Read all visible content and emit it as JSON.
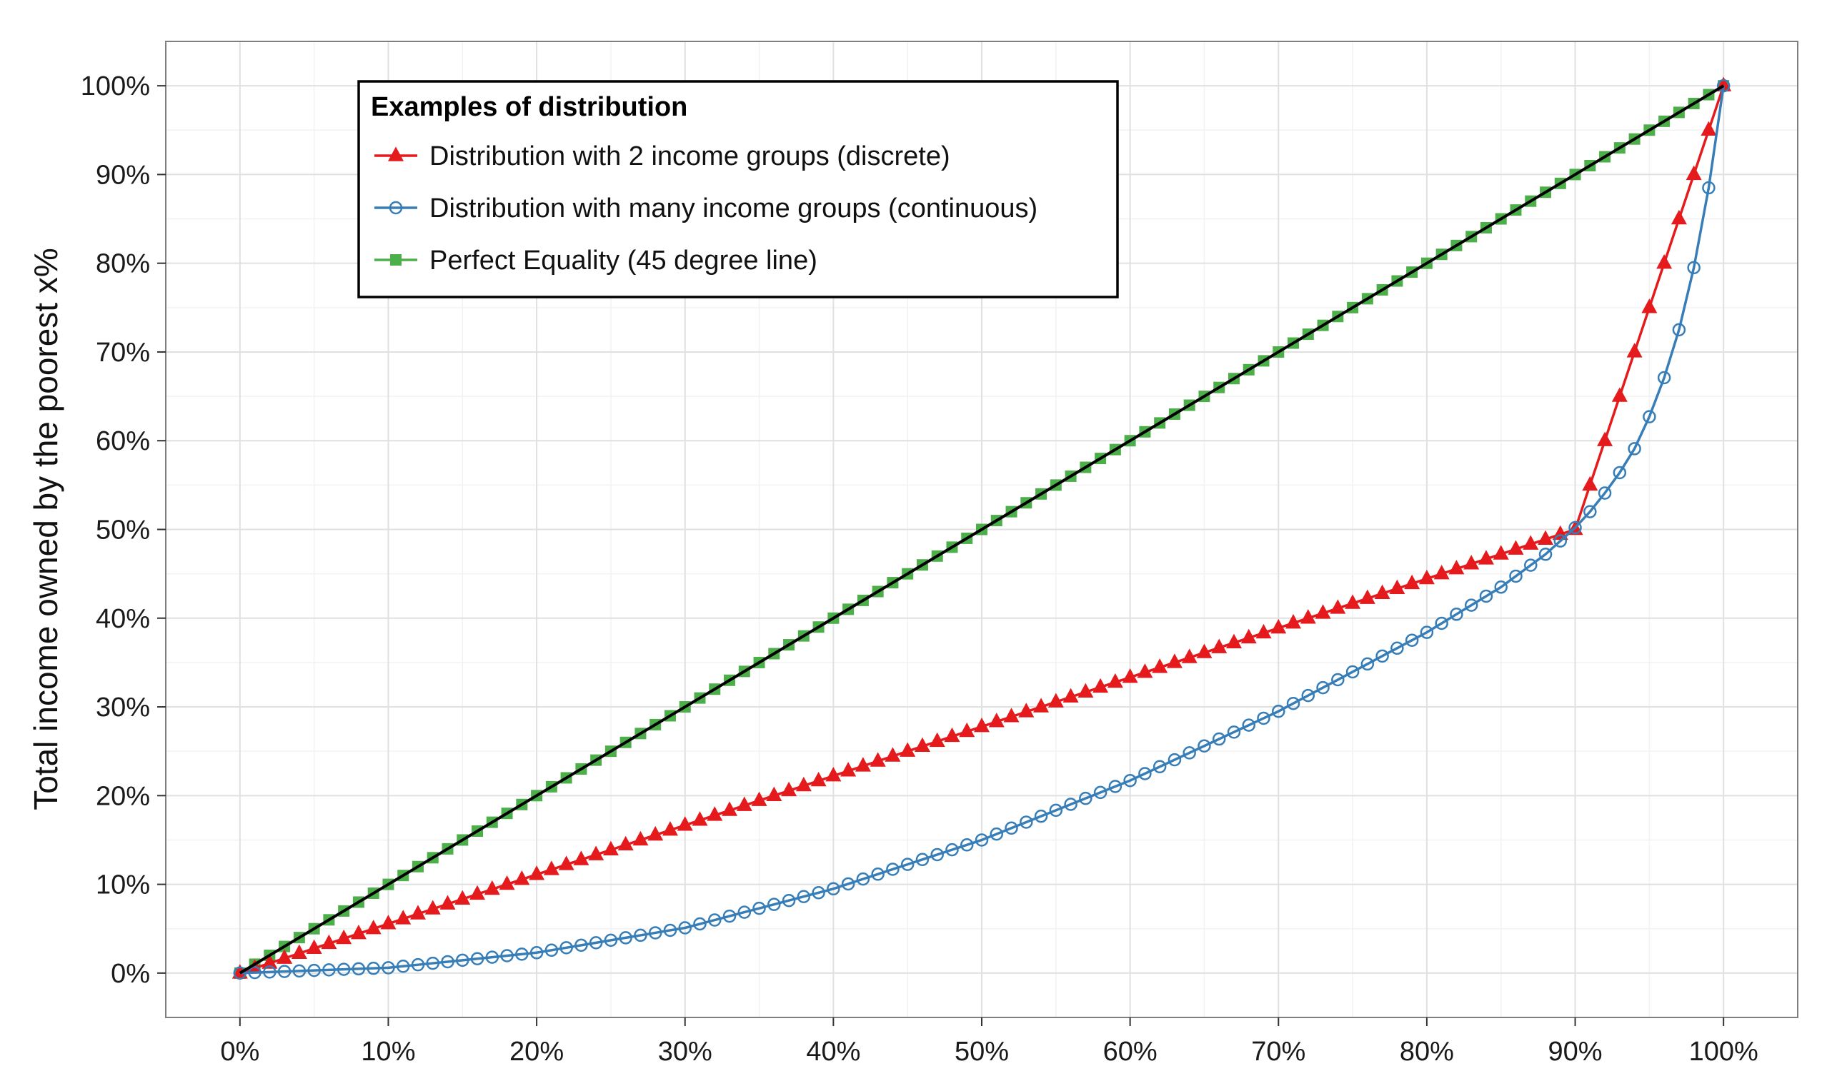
{
  "chart_data": {
    "type": "line",
    "title": "",
    "xlabel": "",
    "ylabel": "Total income owned by the poorest x%",
    "xlim": [
      -5,
      105
    ],
    "ylim": [
      -5,
      105
    ],
    "x_ticks": [
      0,
      10,
      20,
      30,
      40,
      50,
      60,
      70,
      80,
      90,
      100
    ],
    "y_ticks": [
      0,
      10,
      20,
      30,
      40,
      50,
      60,
      70,
      80,
      90,
      100
    ],
    "x_tick_labels": [
      "0%",
      "10%",
      "20%",
      "30%",
      "40%",
      "50%",
      "60%",
      "70%",
      "80%",
      "90%",
      "100%"
    ],
    "y_tick_labels": [
      "0%",
      "10%",
      "20%",
      "30%",
      "40%",
      "50%",
      "60%",
      "70%",
      "80%",
      "90%",
      "100%"
    ],
    "grid": true,
    "legend": {
      "title": "Examples of distribution",
      "position": "top-left"
    },
    "x_sampling": "every 1 percentage point from 0 to 100",
    "series": [
      {
        "name": "Distribution with 2 income groups (discrete)",
        "color": "#e41a1c",
        "marker": "triangle",
        "points": [
          [
            0,
            0
          ],
          [
            90,
            50
          ],
          [
            100,
            100
          ]
        ],
        "note": "linear between listed points"
      },
      {
        "name": "Distribution with many income groups (continuous)",
        "color": "#377eb8",
        "marker": "circle-open",
        "points": [
          [
            0,
            0
          ],
          [
            10,
            0.6
          ],
          [
            20,
            2.3
          ],
          [
            30,
            5.1
          ],
          [
            40,
            9.5
          ],
          [
            50,
            15
          ],
          [
            60,
            21.7
          ],
          [
            70,
            29.5
          ],
          [
            80,
            38.4
          ],
          [
            85,
            43.5
          ],
          [
            88,
            47.2
          ],
          [
            90,
            50.2
          ],
          [
            91,
            52
          ],
          [
            92,
            54.1
          ],
          [
            93,
            56.4
          ],
          [
            94,
            59.1
          ],
          [
            95,
            62.7
          ],
          [
            96,
            67.1
          ],
          [
            97,
            72.5
          ],
          [
            98,
            79.5
          ],
          [
            99,
            88.5
          ],
          [
            100,
            100
          ]
        ]
      },
      {
        "name": "Perfect Equality (45 degree line)",
        "color": "#4daf4a",
        "marker": "square",
        "points": [
          [
            0,
            0
          ],
          [
            100,
            100
          ]
        ],
        "note": "linear between listed points"
      }
    ],
    "reference_line": {
      "color": "#000000",
      "points": [
        [
          0,
          0
        ],
        [
          100,
          100
        ]
      ]
    }
  }
}
